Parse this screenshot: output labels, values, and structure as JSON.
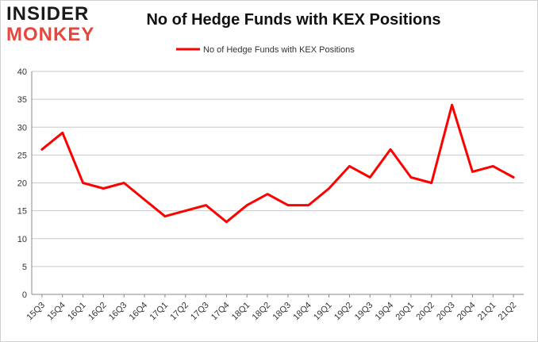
{
  "header": {
    "logo_line1": "INSIDER",
    "logo_line2": "MONKEY"
  },
  "chart_data": {
    "type": "line",
    "title": "No of Hedge Funds with KEX Positions",
    "xlabel": "",
    "ylabel": "",
    "ylim": [
      0,
      40
    ],
    "yticks": [
      0,
      5,
      10,
      15,
      20,
      25,
      30,
      35,
      40
    ],
    "grid": true,
    "legend_position": "top-center",
    "categories": [
      "15Q3",
      "15Q4",
      "16Q1",
      "16Q2",
      "16Q3",
      "16Q4",
      "17Q1",
      "17Q2",
      "17Q3",
      "17Q4",
      "18Q1",
      "18Q2",
      "18Q3",
      "18Q4",
      "19Q1",
      "19Q2",
      "19Q3",
      "19Q4",
      "20Q1",
      "20Q2",
      "20Q3",
      "20Q4",
      "21Q1",
      "21Q2"
    ],
    "series": [
      {
        "name": "No of Hedge Funds with KEX Positions",
        "color": "#ff0000",
        "values": [
          26,
          29,
          20,
          19,
          20,
          17,
          14,
          15,
          16,
          13,
          16,
          18,
          16,
          16,
          19,
          23,
          21,
          26,
          21,
          20,
          34,
          22,
          23,
          21
        ]
      }
    ]
  }
}
